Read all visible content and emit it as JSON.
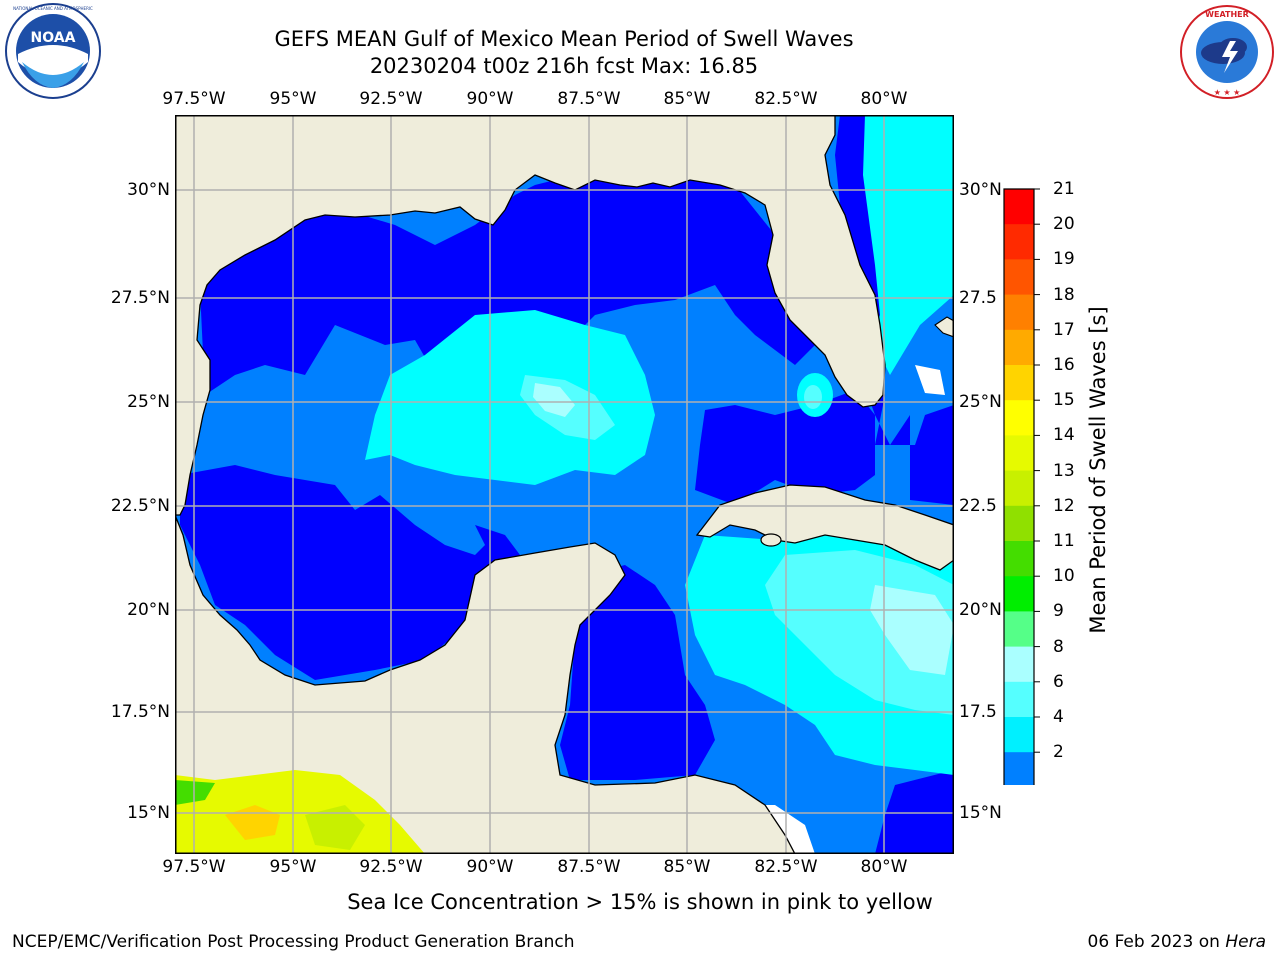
{
  "title": {
    "line1": "GEFS MEAN Gulf of Mexico Mean Period of Swell Waves",
    "line2": "20230204 t00z 216h fcst   Max: 16.85"
  },
  "axes": {
    "longitude_labels": [
      "97.5°W",
      "95°W",
      "92.5°W",
      "90°W",
      "87.5°W",
      "85°W",
      "82.5°W",
      "80°W"
    ],
    "latitude_labels_left": [
      "30°N",
      "27.5°N",
      "25°N",
      "22.5°N",
      "20°N",
      "17.5°N",
      "15°N"
    ],
    "latitude_labels_right": [
      "30°N",
      "27.5",
      "25°N",
      "22.5",
      "20°N",
      "17.5",
      "15°N"
    ]
  },
  "colorbar": {
    "label": "Mean Period of Swell Waves [s]",
    "ticks": [
      "21",
      "20",
      "19",
      "18",
      "17",
      "16",
      "15",
      "14",
      "13",
      "12",
      "11",
      "10",
      "9",
      "8",
      "6",
      "4",
      "2"
    ],
    "colors": [
      "#ff0000",
      "#ff2a00",
      "#ff5500",
      "#ff8000",
      "#ffaa00",
      "#ffd400",
      "#ffff00",
      "#e6fa00",
      "#c8f000",
      "#90e000",
      "#44dd00",
      "#00ee00",
      "#55ff88",
      "#aaffff",
      "#55ffff",
      "#00f0ff",
      "#0080ff"
    ],
    "extend_color": "#0000ff"
  },
  "colors": {
    "land": "#efeddb",
    "deep_blue": "#0000ff",
    "mid_blue": "#0080ff",
    "cyan": "#00ffff",
    "light_cyan": "#55ffff",
    "pale_cyan": "#aaffff",
    "grid": "#b0b0b0"
  },
  "annotation": "Sea Ice Concentration > 15% is shown in pink to yellow",
  "credit": "NCEP/EMC/Verification Post Processing Product Generation Branch",
  "stamp": {
    "date": "06 Feb 2023 on ",
    "machine": "Hera"
  },
  "logos": {
    "left": "NOAA",
    "left_ring": "NATIONAL OCEANIC AND ATMOSPHERIC ADMINISTRATION · U.S. DEPARTMENT OF COMMERCE",
    "right_ring": "NATIONAL WEATHER SERVICE"
  }
}
